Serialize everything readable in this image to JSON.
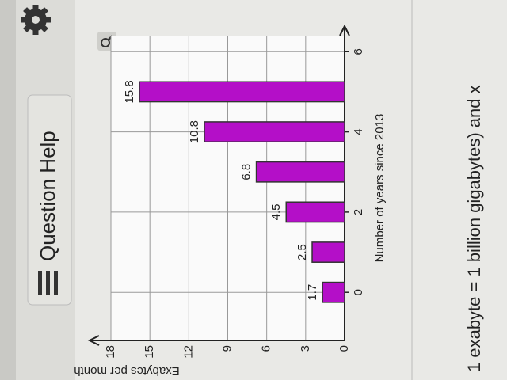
{
  "header": {
    "title": "Question Help"
  },
  "chart_data": {
    "type": "bar",
    "x_label": "Number of years since 2013",
    "y_label": "Exabytes per month",
    "x": [
      0,
      1,
      2,
      3,
      4,
      5
    ],
    "values": [
      1.7,
      2.5,
      4.5,
      6.8,
      10.8,
      15.8
    ],
    "color": "#b40fc8",
    "xlim": [
      -1.2,
      6.4
    ],
    "xticks": [
      0,
      2,
      4,
      6
    ],
    "ylim": [
      0,
      18
    ],
    "yticks": [
      0,
      3,
      6,
      9,
      12,
      15,
      18
    ],
    "grid": true
  },
  "footer": {
    "text": "1 exabyte = 1 billion gigabytes) and x"
  }
}
